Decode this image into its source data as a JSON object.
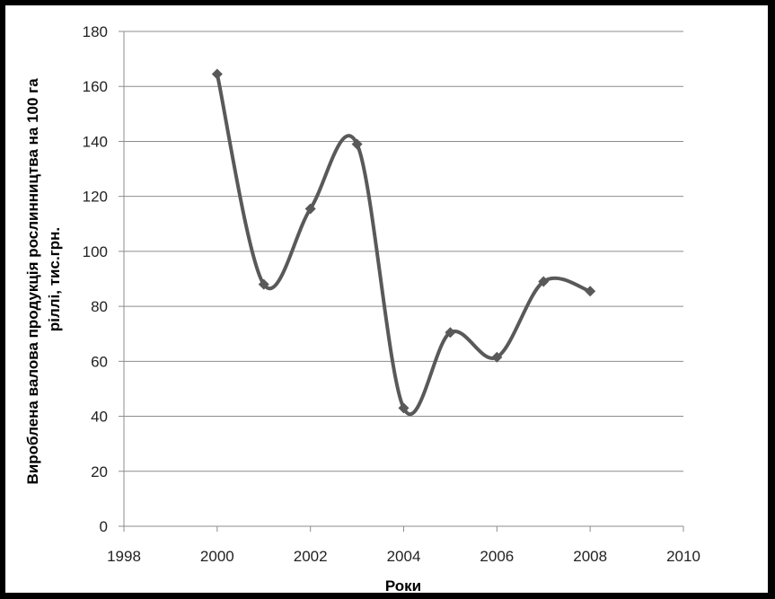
{
  "chart_data": {
    "type": "scatter",
    "subtype": "smoothed-line-with-markers",
    "title": "",
    "xlabel": "Роки",
    "ylabel_lines": [
      "Вироблена  валова продукція рослинництва на 100 га",
      "ріллі, тис.грн."
    ],
    "xlim": [
      1998,
      2010
    ],
    "ylim": [
      0,
      180
    ],
    "x_ticks": [
      1998,
      2000,
      2002,
      2004,
      2006,
      2008,
      2010
    ],
    "y_ticks": [
      0,
      20,
      40,
      60,
      80,
      100,
      120,
      140,
      160,
      180
    ],
    "grid": "horizontal",
    "legend": "none",
    "series": [
      {
        "x": [
          2000,
          2001,
          2002,
          2003,
          2004,
          2005,
          2006,
          2007,
          2008
        ],
        "y": [
          164.5,
          88,
          115.5,
          139,
          43,
          70.5,
          61.5,
          89,
          85.5
        ]
      }
    ],
    "colors": {
      "line": "#595959",
      "marker": "#595959",
      "grid": "#8c8c8c",
      "axis": "#8c8c8c"
    }
  }
}
